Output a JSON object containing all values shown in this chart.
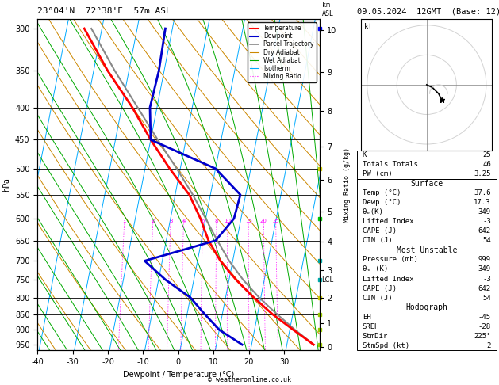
{
  "title_left": "23°04'N  72°38'E  57m ASL",
  "title_right": "09.05.2024  12GMT  (Base: 12)",
  "xlabel": "Dewpoint / Temperature (°C)",
  "ylabel_left": "hPa",
  "pressure_levels": [
    300,
    350,
    400,
    450,
    500,
    550,
    600,
    650,
    700,
    750,
    800,
    850,
    900,
    950
  ],
  "temp_xlim": [
    -40,
    40
  ],
  "temp_xticks": [
    -40,
    -30,
    -20,
    -10,
    0,
    10,
    20,
    30
  ],
  "temp_color": "#ff0000",
  "dewpoint_color": "#0000cc",
  "parcel_color": "#888888",
  "dry_adiabat_color": "#cc8800",
  "wet_adiabat_color": "#00aa00",
  "isotherm_color": "#00aaff",
  "mixing_ratio_color": "#ff00ff",
  "temp_profile": {
    "pressure": [
      950,
      900,
      850,
      800,
      750,
      700,
      650,
      600,
      550,
      500,
      450,
      400,
      350,
      300
    ],
    "temp": [
      37.6,
      31.0,
      24.2,
      18.0,
      12.0,
      6.5,
      2.0,
      -1.5,
      -6.0,
      -13.0,
      -20.0,
      -27.0,
      -36.0,
      -45.0
    ]
  },
  "dewpoint_profile": {
    "pressure": [
      950,
      900,
      850,
      800,
      750,
      700,
      650,
      600,
      550,
      500,
      450,
      400,
      350,
      300
    ],
    "temp": [
      17.3,
      10.0,
      5.0,
      0.0,
      -8.0,
      -15.0,
      4.0,
      8.0,
      8.5,
      0.0,
      -20.0,
      -22.0,
      -21.5,
      -22.0
    ]
  },
  "parcel_profile": {
    "pressure": [
      950,
      900,
      850,
      800,
      750,
      700,
      650,
      600,
      550,
      500,
      450,
      400,
      350,
      300
    ],
    "temp": [
      37.6,
      31.5,
      25.5,
      19.5,
      14.0,
      9.0,
      4.5,
      0.0,
      -5.0,
      -11.0,
      -18.0,
      -25.5,
      -34.0,
      -43.0
    ]
  },
  "mixing_ratio_labels": [
    1,
    2,
    3,
    4,
    6,
    8,
    10,
    15,
    20,
    25
  ],
  "km_pressure": [
    958,
    878,
    800,
    725,
    653,
    585,
    521,
    461,
    405,
    352,
    302
  ],
  "km_values": [
    0,
    1,
    2,
    3,
    4,
    5,
    6,
    7,
    8,
    9,
    10
  ],
  "lcl_pressure": 750,
  "skew": 35,
  "pmin": 290,
  "pmax": 970,
  "stats": {
    "K": 25,
    "Totals_Totals": 46,
    "PW_cm": "3.25",
    "Surface_Temp": "37.6",
    "Surface_Dewp": "17.3",
    "Surface_ThetaE": 349,
    "Lifted_Index": -3,
    "CAPE": 642,
    "CIN": 54,
    "MU_Pressure": 999,
    "MU_ThetaE": 349,
    "MU_LI": -3,
    "MU_CAPE": 642,
    "MU_CIN": 54,
    "EH": -45,
    "SREH": -28,
    "StmDir": "225°",
    "StmSpd": 2
  },
  "wind_marker_pressures": [
    300,
    500,
    600,
    700,
    750,
    800,
    850,
    900,
    950
  ],
  "wind_marker_colors": [
    "#0000ff",
    "#cccc00",
    "#00cc00",
    "#00aaaa",
    "#00aaaa",
    "#cccc00",
    "#99cc00",
    "#99cc00",
    "#99cc00"
  ]
}
